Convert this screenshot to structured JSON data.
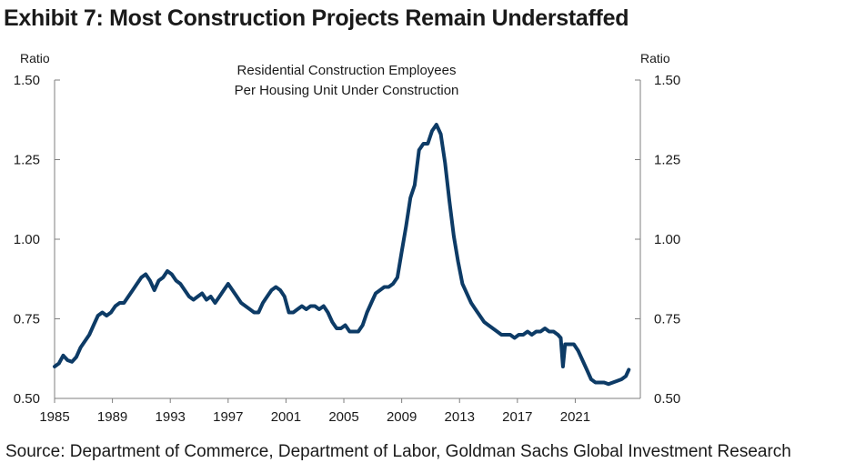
{
  "header": {
    "title": "Exhibit 7: Most Construction Projects Remain Understaffed"
  },
  "footer": {
    "source": "Source: Department of Commerce, Department of Labor, Goldman Sachs Global Investment Research"
  },
  "colors": {
    "line": "#0d3b66",
    "axis": "#7f7f7f",
    "text": "#1a1a1a"
  },
  "chart_data": {
    "type": "line",
    "title": "Residential Construction Employees\nPer Housing Unit Under Construction",
    "title_lines": [
      "Residential Construction Employees",
      "Per Housing Unit Under Construction"
    ],
    "ylabel_left": "Ratio",
    "ylabel_right": "Ratio",
    "xlabel": "",
    "xlim": [
      1985,
      2025.5
    ],
    "ylim": [
      0.5,
      1.5
    ],
    "x_ticks": [
      1985,
      1989,
      1993,
      1997,
      2001,
      2005,
      2009,
      2013,
      2017,
      2021
    ],
    "x_tick_labels": [
      "1985",
      "1989",
      "1993",
      "1997",
      "2001",
      "2005",
      "2009",
      "2013",
      "2017",
      "2021"
    ],
    "y_ticks": [
      0.5,
      0.75,
      1.0,
      1.25,
      1.5
    ],
    "y_tick_labels": [
      "0.50",
      "0.75",
      "1.00",
      "1.25",
      "1.50"
    ],
    "grid": false,
    "legend": "none",
    "series": [
      {
        "name": "Residential Construction Employees Per Housing Unit Under Construction",
        "x": [
          1985.0,
          1985.3,
          1985.6,
          1985.9,
          1986.2,
          1986.5,
          1986.8,
          1987.1,
          1987.4,
          1987.7,
          1988.0,
          1988.3,
          1988.6,
          1988.9,
          1989.2,
          1989.5,
          1989.8,
          1990.1,
          1990.4,
          1990.7,
          1991.0,
          1991.3,
          1991.6,
          1991.9,
          1992.2,
          1992.5,
          1992.8,
          1993.1,
          1993.4,
          1993.7,
          1994.0,
          1994.3,
          1994.6,
          1994.9,
          1995.2,
          1995.5,
          1995.8,
          1996.1,
          1996.4,
          1996.7,
          1997.0,
          1997.3,
          1997.6,
          1997.9,
          1998.2,
          1998.5,
          1998.8,
          1999.1,
          1999.4,
          1999.7,
          2000.0,
          2000.3,
          2000.6,
          2000.9,
          2001.2,
          2001.5,
          2001.8,
          2002.1,
          2002.4,
          2002.7,
          2003.0,
          2003.3,
          2003.6,
          2003.9,
          2004.2,
          2004.5,
          2004.8,
          2005.1,
          2005.4,
          2005.7,
          2006.0,
          2006.3,
          2006.6,
          2006.9,
          2007.2,
          2007.5,
          2007.8,
          2008.1,
          2008.4,
          2008.7,
          2009.0,
          2009.3,
          2009.6,
          2009.9,
          2010.2,
          2010.5,
          2010.8,
          2011.1,
          2011.4,
          2011.7,
          2012.0,
          2012.3,
          2012.6,
          2012.9,
          2013.2,
          2013.5,
          2013.8,
          2014.1,
          2014.4,
          2014.7,
          2015.0,
          2015.3,
          2015.6,
          2015.9,
          2016.2,
          2016.5,
          2016.8,
          2017.1,
          2017.4,
          2017.7,
          2018.0,
          2018.3,
          2018.6,
          2018.9,
          2019.2,
          2019.5,
          2019.8,
          2020.0,
          2020.15,
          2020.3,
          2020.6,
          2020.9,
          2021.2,
          2021.5,
          2021.8,
          2022.1,
          2022.4,
          2022.7,
          2023.0,
          2023.3,
          2023.6,
          2023.9,
          2024.2,
          2024.5,
          2024.7
        ],
        "values": [
          0.6,
          0.61,
          0.635,
          0.62,
          0.615,
          0.63,
          0.66,
          0.68,
          0.7,
          0.73,
          0.76,
          0.77,
          0.76,
          0.77,
          0.79,
          0.8,
          0.8,
          0.82,
          0.84,
          0.86,
          0.88,
          0.89,
          0.87,
          0.84,
          0.87,
          0.88,
          0.9,
          0.89,
          0.87,
          0.86,
          0.84,
          0.82,
          0.81,
          0.82,
          0.83,
          0.81,
          0.82,
          0.8,
          0.82,
          0.84,
          0.86,
          0.84,
          0.82,
          0.8,
          0.79,
          0.78,
          0.77,
          0.77,
          0.8,
          0.82,
          0.84,
          0.85,
          0.84,
          0.82,
          0.77,
          0.77,
          0.78,
          0.79,
          0.78,
          0.79,
          0.79,
          0.78,
          0.79,
          0.77,
          0.74,
          0.72,
          0.72,
          0.73,
          0.71,
          0.71,
          0.71,
          0.73,
          0.77,
          0.8,
          0.83,
          0.84,
          0.85,
          0.85,
          0.86,
          0.88,
          0.96,
          1.04,
          1.13,
          1.17,
          1.28,
          1.3,
          1.3,
          1.34,
          1.36,
          1.33,
          1.24,
          1.12,
          1.01,
          0.93,
          0.86,
          0.83,
          0.8,
          0.78,
          0.76,
          0.74,
          0.73,
          0.72,
          0.71,
          0.7,
          0.7,
          0.7,
          0.69,
          0.7,
          0.7,
          0.71,
          0.7,
          0.71,
          0.71,
          0.72,
          0.71,
          0.71,
          0.7,
          0.69,
          0.6,
          0.67,
          0.67,
          0.67,
          0.65,
          0.62,
          0.59,
          0.56,
          0.55,
          0.55,
          0.55,
          0.545,
          0.55,
          0.555,
          0.56,
          0.57,
          0.59
        ]
      }
    ]
  }
}
